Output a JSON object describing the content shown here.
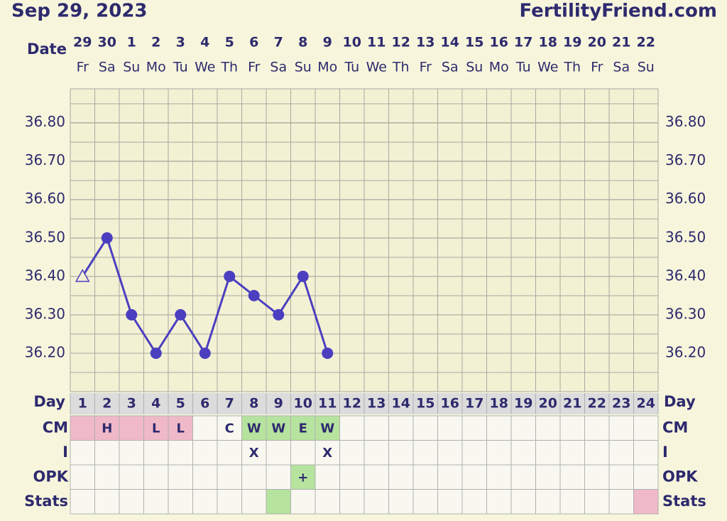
{
  "header": {
    "date": "Sep 29, 2023",
    "brand": "FertilityFriend.com"
  },
  "chart_data": {
    "type": "line",
    "date_label": "Date",
    "dates": [
      "29",
      "30",
      "1",
      "2",
      "3",
      "4",
      "5",
      "6",
      "7",
      "8",
      "9",
      "10",
      "11",
      "12",
      "13",
      "14",
      "15",
      "16",
      "17",
      "18",
      "19",
      "20",
      "21",
      "22"
    ],
    "weekdays": [
      "Fr",
      "Sa",
      "Su",
      "Mo",
      "Tu",
      "We",
      "Th",
      "Fr",
      "Sa",
      "Su",
      "Mo",
      "Tu",
      "We",
      "Th",
      "Fr",
      "Sa",
      "Su",
      "Mo",
      "Tu",
      "We",
      "Th",
      "Fr",
      "Sa",
      "Su"
    ],
    "day_label": "Day",
    "categories": [
      1,
      2,
      3,
      4,
      5,
      6,
      7,
      8,
      9,
      10,
      11,
      12,
      13,
      14,
      15,
      16,
      17,
      18,
      19,
      20,
      21,
      22,
      23,
      24
    ],
    "series": [
      {
        "name": "Temperature",
        "color": "#4b3fc0",
        "first_marker": "open-triangle",
        "values": [
          36.4,
          36.5,
          36.3,
          36.2,
          36.3,
          36.2,
          36.4,
          36.35,
          36.3,
          36.4,
          36.2,
          null,
          null,
          null,
          null,
          null,
          null,
          null,
          null,
          null,
          null,
          null,
          null,
          null
        ]
      }
    ],
    "ylim": [
      36.1,
      36.888
    ],
    "yticks": [
      {
        "value": 36.2,
        "label": "36.20"
      },
      {
        "value": 36.3,
        "label": "36.30"
      },
      {
        "value": 36.4,
        "label": "36.40"
      },
      {
        "value": 36.5,
        "label": "36.50"
      },
      {
        "value": 36.6,
        "label": "36.60"
      },
      {
        "value": 36.7,
        "label": "36.70"
      },
      {
        "value": 36.8,
        "label": "36.80"
      }
    ],
    "grid": true
  },
  "table": {
    "rows": [
      {
        "label": "CM",
        "cells": [
          null,
          "H",
          null,
          "L",
          "L",
          null,
          "C",
          "W",
          "W",
          "E",
          "W",
          null,
          null,
          null,
          null,
          null,
          null,
          null,
          null,
          null,
          null,
          null,
          null,
          null
        ],
        "colors": [
          "#f0b9c8",
          "#f0b9c8",
          "#f0b9c8",
          "#f0b9c8",
          "#f0b9c8",
          null,
          null,
          "#b6e39e",
          "#b6e39e",
          "#b6e39e",
          "#b6e39e",
          null,
          null,
          null,
          null,
          null,
          null,
          null,
          null,
          null,
          null,
          null,
          null,
          null
        ]
      },
      {
        "label": "I",
        "cells": [
          null,
          null,
          null,
          null,
          null,
          null,
          null,
          "X",
          null,
          null,
          "X",
          null,
          null,
          null,
          null,
          null,
          null,
          null,
          null,
          null,
          null,
          null,
          null,
          null
        ],
        "colors": [
          null,
          null,
          null,
          null,
          null,
          null,
          null,
          null,
          null,
          null,
          null,
          null,
          null,
          null,
          null,
          null,
          null,
          null,
          null,
          null,
          null,
          null,
          null,
          null
        ]
      },
      {
        "label": "OPK",
        "cells": [
          null,
          null,
          null,
          null,
          null,
          null,
          null,
          null,
          null,
          "+",
          null,
          null,
          null,
          null,
          null,
          null,
          null,
          null,
          null,
          null,
          null,
          null,
          null,
          null
        ],
        "colors": [
          null,
          null,
          null,
          null,
          null,
          null,
          null,
          null,
          null,
          "#b6e39e",
          null,
          null,
          null,
          null,
          null,
          null,
          null,
          null,
          null,
          null,
          null,
          null,
          null,
          null
        ]
      },
      {
        "label": "Stats",
        "cells": [
          null,
          null,
          null,
          null,
          null,
          null,
          null,
          null,
          null,
          null,
          null,
          null,
          null,
          null,
          null,
          null,
          null,
          null,
          null,
          null,
          null,
          null,
          null,
          null
        ],
        "colors": [
          null,
          null,
          null,
          null,
          null,
          null,
          null,
          null,
          "#b6e39e",
          null,
          null,
          null,
          null,
          null,
          null,
          null,
          null,
          null,
          null,
          null,
          null,
          null,
          null,
          "#f0b9c8"
        ]
      }
    ]
  }
}
